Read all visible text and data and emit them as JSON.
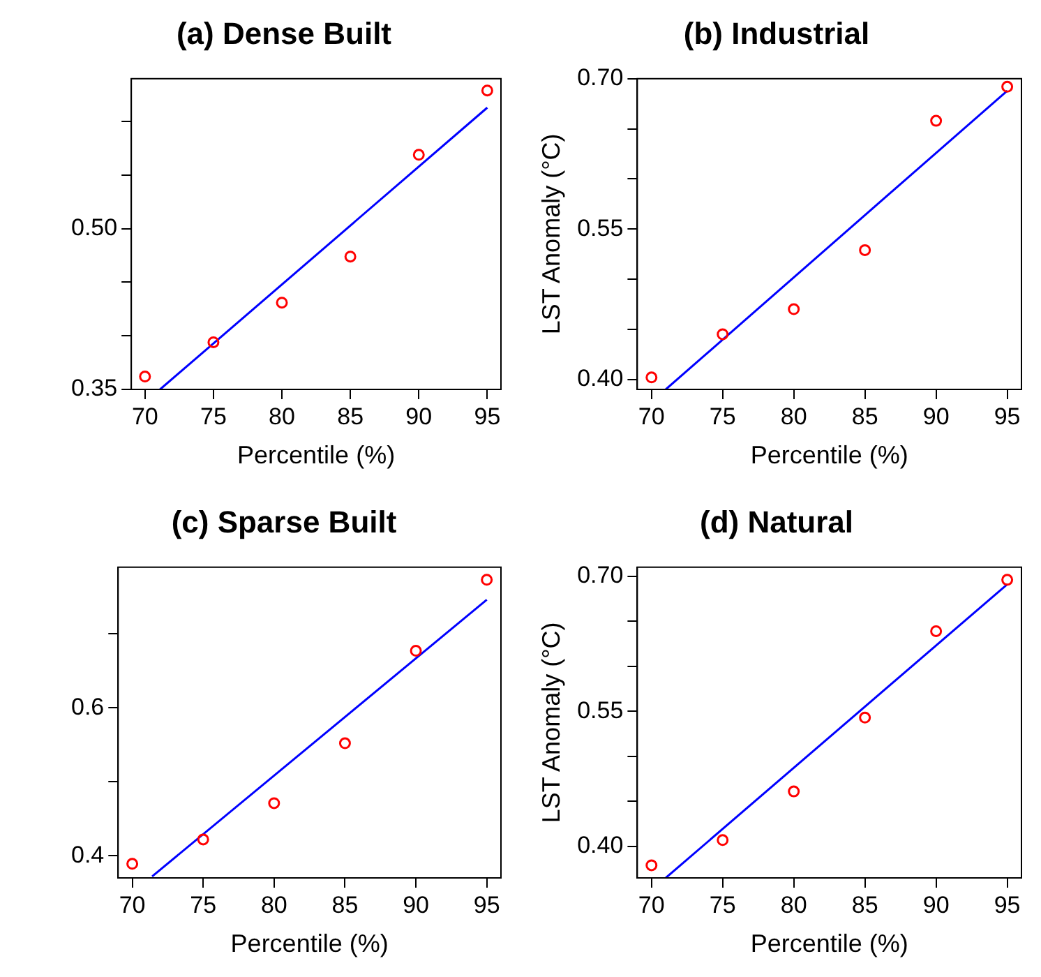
{
  "chart_data": [
    {
      "type": "scatter",
      "title": "(a) Dense Built",
      "xlabel": "Percentile (%)",
      "xlim": [
        69,
        96
      ],
      "xticks": [
        70,
        75,
        80,
        85,
        90,
        95
      ],
      "ylim": [
        0.35,
        0.64
      ],
      "yticks": [
        0.35,
        {
          "value": 0.4,
          "label": null
        },
        {
          "value": 0.45,
          "label": null
        },
        {
          "value": 0.5,
          "label": "0.50"
        },
        {
          "value": 0.55,
          "label": null
        },
        {
          "value": 0.6,
          "label": null
        }
      ],
      "grid": false,
      "series": [
        {
          "marker": "circle",
          "color": "#ff0000",
          "x": [
            70,
            75,
            80,
            85,
            90,
            95
          ],
          "values": [
            0.362,
            0.394,
            0.431,
            0.474,
            0.569,
            0.629
          ]
        },
        {
          "type": "line",
          "marker": "none",
          "color": "#0000ff",
          "x": [
            71.1,
            95
          ],
          "values": [
            0.35,
            0.613
          ]
        }
      ]
    },
    {
      "type": "scatter",
      "title": "(b) Industrial",
      "xlabel": "Percentile (%)",
      "ylabel": "LST Anomaly (°C)",
      "xlim": [
        69,
        96
      ],
      "xticks": [
        70,
        75,
        80,
        85,
        90,
        95
      ],
      "ylim": [
        0.39,
        0.7
      ],
      "yticks": [
        {
          "value": 0.4,
          "label": "0.40"
        },
        {
          "value": 0.45,
          "label": null
        },
        {
          "value": 0.5,
          "label": null
        },
        0.55,
        {
          "value": 0.6,
          "label": null
        },
        {
          "value": 0.65,
          "label": null
        },
        {
          "value": 0.7,
          "label": "0.70"
        }
      ],
      "grid": false,
      "series": [
        {
          "marker": "circle",
          "color": "#ff0000",
          "x": [
            70,
            75,
            80,
            85,
            90,
            95
          ],
          "values": [
            0.402,
            0.445,
            0.47,
            0.529,
            0.658,
            0.692
          ]
        },
        {
          "type": "line",
          "marker": "none",
          "color": "#0000ff",
          "x": [
            71,
            95
          ],
          "values": [
            0.39,
            0.688
          ]
        }
      ]
    },
    {
      "type": "scatter",
      "title": "(c) Sparse Built",
      "xlabel": "Percentile (%)",
      "xlim": [
        69,
        96
      ],
      "xticks": [
        70,
        75,
        80,
        85,
        90,
        95
      ],
      "ylim": [
        0.37,
        0.79
      ],
      "yticks": [
        0.4,
        {
          "value": 0.5,
          "label": null
        },
        0.6,
        {
          "value": 0.7,
          "label": null
        }
      ],
      "grid": false,
      "series": [
        {
          "marker": "circle",
          "color": "#ff0000",
          "x": [
            70,
            75,
            80,
            85,
            90,
            95
          ],
          "values": [
            0.389,
            0.422,
            0.471,
            0.552,
            0.677,
            0.773
          ]
        },
        {
          "type": "line",
          "marker": "none",
          "color": "#0000ff",
          "x": [
            71.4,
            95
          ],
          "values": [
            0.372,
            0.746
          ]
        }
      ]
    },
    {
      "type": "scatter",
      "title": "(d) Natural",
      "xlabel": "Percentile (%)",
      "ylabel": "LST Anomaly (°C)",
      "xlim": [
        69,
        96
      ],
      "xticks": [
        70,
        75,
        80,
        85,
        90,
        95
      ],
      "ylim": [
        0.365,
        0.71
      ],
      "yticks": [
        {
          "value": 0.4,
          "label": "0.40"
        },
        {
          "value": 0.45,
          "label": null
        },
        {
          "value": 0.5,
          "label": null
        },
        0.55,
        {
          "value": 0.6,
          "label": null
        },
        {
          "value": 0.65,
          "label": null
        },
        {
          "value": 0.7,
          "label": "0.70"
        }
      ],
      "grid": false,
      "series": [
        {
          "marker": "circle",
          "color": "#ff0000",
          "x": [
            70,
            75,
            80,
            85,
            90,
            95
          ],
          "values": [
            0.379,
            0.407,
            0.461,
            0.543,
            0.639,
            0.696
          ]
        },
        {
          "type": "line",
          "marker": "none",
          "color": "#0000ff",
          "x": [
            71,
            95
          ],
          "values": [
            0.365,
            0.691
          ]
        }
      ]
    }
  ]
}
